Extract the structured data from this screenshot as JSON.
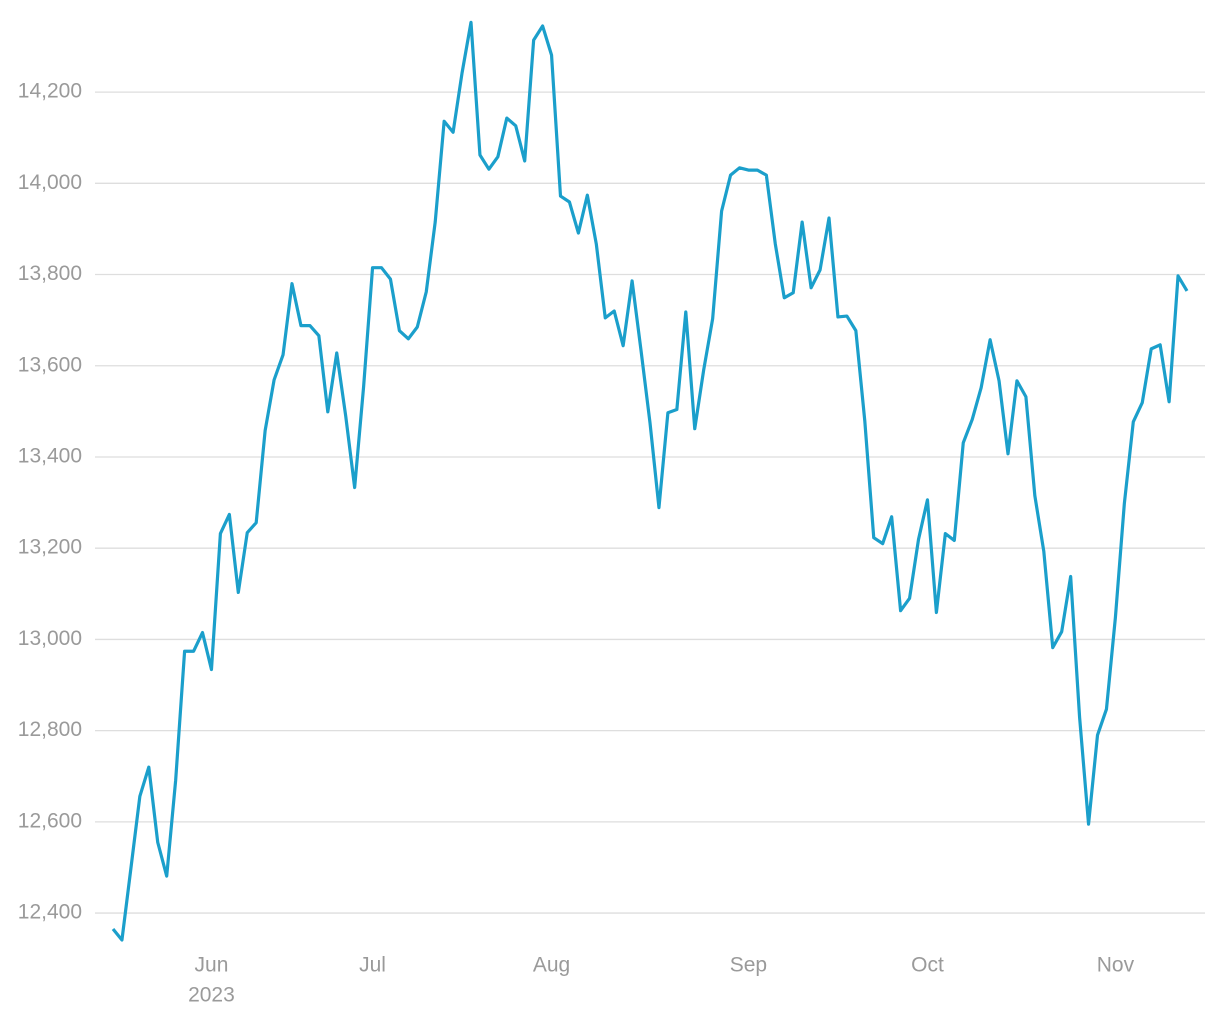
{
  "chart_data": {
    "type": "line",
    "categories": [
      null,
      null,
      null,
      null,
      null,
      null,
      null,
      null,
      null,
      null,
      null,
      "Jun",
      null,
      null,
      null,
      null,
      null,
      null,
      null,
      null,
      null,
      null,
      null,
      null,
      null,
      null,
      null,
      null,
      null,
      "Jul",
      null,
      null,
      null,
      null,
      null,
      null,
      null,
      null,
      null,
      null,
      null,
      null,
      null,
      null,
      null,
      null,
      null,
      null,
      null,
      "Aug",
      null,
      null,
      null,
      null,
      null,
      null,
      null,
      null,
      null,
      null,
      null,
      null,
      null,
      null,
      null,
      null,
      null,
      null,
      null,
      null,
      null,
      "Sep",
      null,
      null,
      null,
      null,
      null,
      null,
      null,
      null,
      null,
      null,
      null,
      null,
      null,
      null,
      null,
      null,
      null,
      null,
      null,
      "Oct",
      null,
      null,
      null,
      null,
      null,
      null,
      null,
      null,
      null,
      null,
      null,
      null,
      null,
      null,
      null,
      null,
      null,
      null,
      null,
      null,
      "Nov",
      null,
      null,
      null,
      null,
      null,
      null,
      null,
      null
    ],
    "year_label": "2023",
    "series": [
      {
        "color": "#1b9fcb",
        "values": [
          12365,
          12341,
          12498,
          12656,
          12720,
          12555,
          12481,
          12691,
          12974,
          12974,
          13015,
          12934,
          13232,
          13274,
          13103,
          13234,
          13256,
          13458,
          13569,
          13624,
          13780,
          13688,
          13688,
          13666,
          13499,
          13628,
          13490,
          13333,
          13554,
          13815,
          13815,
          13790,
          13677,
          13659,
          13685,
          13762,
          13915,
          14136,
          14112,
          14242,
          14353,
          14062,
          14031,
          14058,
          14143,
          14126,
          14049,
          14314,
          14345,
          14281,
          13972,
          13959,
          13891,
          13974,
          13867,
          13705,
          13720,
          13644,
          13786,
          13633,
          13475,
          13289,
          13497,
          13504,
          13718,
          13462,
          13591,
          13703,
          13939,
          14018,
          14034,
          14029,
          14029,
          14018,
          13867,
          13749,
          13760,
          13915,
          13771,
          13810,
          13924,
          13707,
          13709,
          13677,
          13479,
          13223,
          13210,
          13269,
          13063,
          13090,
          13219,
          13306,
          13059,
          13232,
          13217,
          13431,
          13482,
          13552,
          13657,
          13567,
          13407,
          13567,
          13532,
          13315,
          13193,
          12982,
          13017,
          13138,
          12829,
          12595,
          12790,
          12847,
          13048,
          13298,
          13477,
          13519,
          13637,
          13646,
          13521,
          13797,
          13764
        ]
      }
    ],
    "ylim": [
      12330,
      14380
    ],
    "yticks": [
      {
        "value": 12400,
        "label": "12,400"
      },
      {
        "value": 12600,
        "label": "12,600"
      },
      {
        "value": 12800,
        "label": "12,800"
      },
      {
        "value": 13000,
        "label": "13,000"
      },
      {
        "value": 13200,
        "label": "13,200"
      },
      {
        "value": 13400,
        "label": "13,400"
      },
      {
        "value": 13600,
        "label": "13,600"
      },
      {
        "value": 13800,
        "label": "13,800"
      },
      {
        "value": 14000,
        "label": "14,000"
      },
      {
        "value": 14200,
        "label": "14,200"
      }
    ],
    "grid": true
  }
}
